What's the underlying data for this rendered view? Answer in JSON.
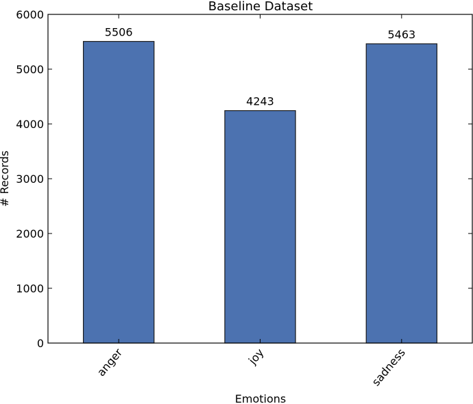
{
  "chart_data": {
    "type": "bar",
    "title": "Baseline Dataset",
    "xlabel": "Emotions",
    "ylabel": "# Records",
    "categories": [
      "anger",
      "joy",
      "sadness"
    ],
    "values": [
      5506,
      4243,
      5463
    ],
    "value_labels": [
      "5506",
      "4243",
      "5463"
    ],
    "ylim": [
      0,
      6000
    ],
    "yticks": [
      0,
      1000,
      2000,
      3000,
      4000,
      5000,
      6000
    ],
    "ytick_labels": [
      "0",
      "1000",
      "2000",
      "3000",
      "4000",
      "5000",
      "6000"
    ],
    "grid": false,
    "legend": "none",
    "colors": {
      "bar": "#4c72b0",
      "edge": "#1a1a1a"
    }
  }
}
